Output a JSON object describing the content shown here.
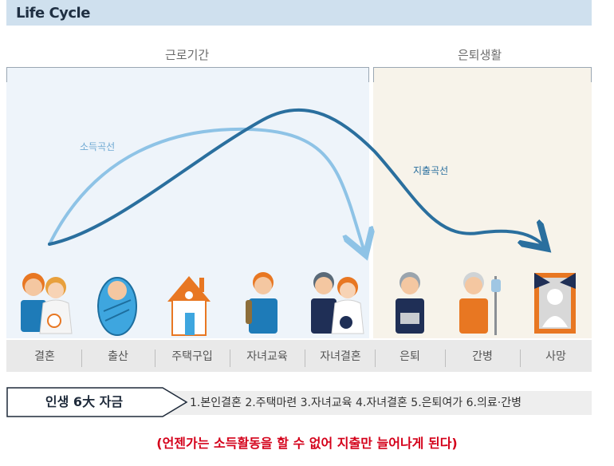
{
  "title": "Life Cycle",
  "sections": {
    "work_label": "근로기간",
    "retire_label": "은퇴생활"
  },
  "curves": {
    "income_label": "소득곡선",
    "expense_label": "지출곡선",
    "income_color": "#8ec3e6",
    "expense_color": "#2a6f9e"
  },
  "stages": [
    "결혼",
    "출산",
    "주택구입",
    "자녀교육",
    "자녀결혼",
    "은퇴",
    "간병",
    "사망"
  ],
  "funds": {
    "label": "인생 6大 자금",
    "items": "1.본인결혼  2.주택마련  3.자녀교육  4.자녀결혼  5.은퇴여가  6.의료·간병"
  },
  "note": "(언젠가는 소득활동을 할 수 없어 지출만 늘어나게 된다)"
}
